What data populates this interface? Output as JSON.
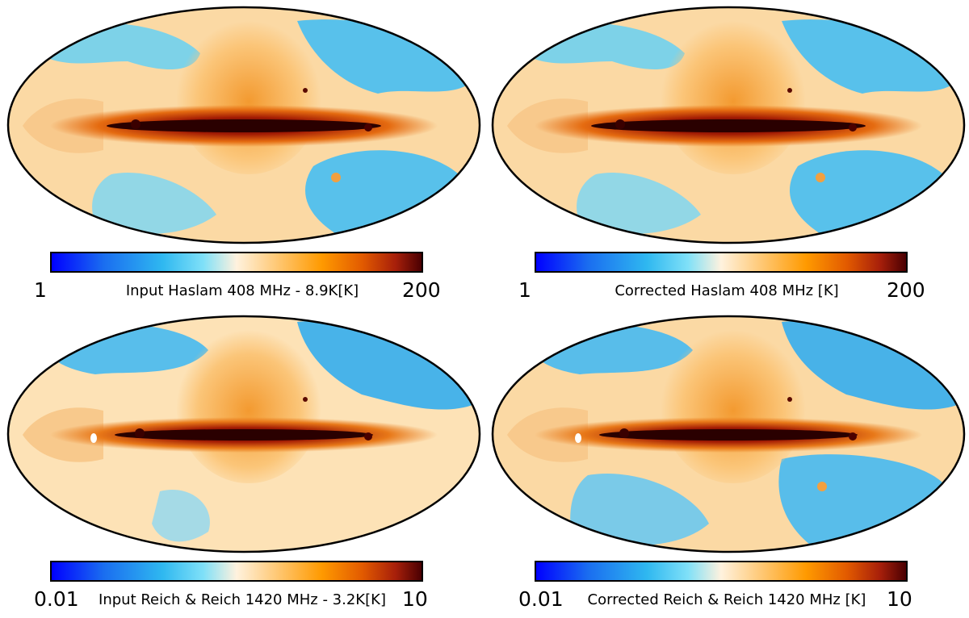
{
  "colormap": {
    "stops": [
      "#0000ff",
      "#1a6df0",
      "#2fb8f0",
      "#7fe0f8",
      "#fff2de",
      "#ffc46a",
      "#ff9a00",
      "#e25a00",
      "#a71f0a",
      "#4a0002"
    ],
    "scale": "logarithmic"
  },
  "panels": [
    {
      "title": "Input Haslam 408 MHz - 8.9K[K]",
      "cbar_min": "1",
      "cbar_max": "200"
    },
    {
      "title": "Corrected Haslam 408 MHz [K]",
      "cbar_min": "1",
      "cbar_max": "200"
    },
    {
      "title": "Input Reich & Reich 1420 MHz - 3.2K[K]",
      "cbar_min": "0.01",
      "cbar_max": "10"
    },
    {
      "title": "Corrected Reich & Reich 1420 MHz [K]",
      "cbar_min": "0.01",
      "cbar_max": "10"
    }
  ]
}
